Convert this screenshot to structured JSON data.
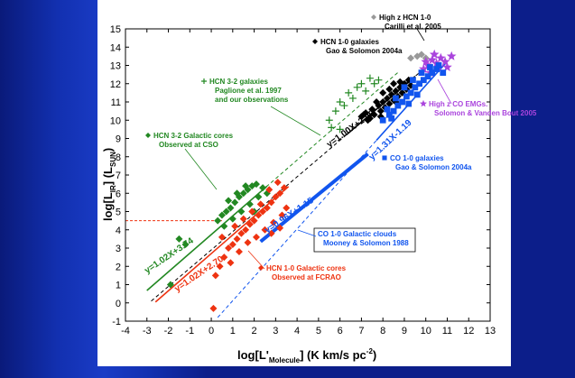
{
  "chart_data": {
    "type": "scatter",
    "xlabel": "log[L'Molecule] (K km/s pc-2)",
    "xlabel_main": "log[L'",
    "xlabel_sub": "Molecule",
    "xlabel_tail": "] (K km/s pc",
    "xlabel_sup": "-2",
    "xlabel_close": ")",
    "ylabel": "log[LIR] (LSUN)",
    "ylabel_main": "log[L",
    "ylabel_sub": "IR",
    "ylabel_mid": "] (L",
    "ylabel_sub2": "SUN",
    "ylabel_close": ")",
    "xlim": [
      -4,
      13
    ],
    "ylim": [
      -1,
      15
    ],
    "xticks": [
      -4,
      -3,
      -2,
      -1,
      0,
      1,
      2,
      3,
      4,
      5,
      6,
      7,
      8,
      9,
      10,
      11,
      12,
      13
    ],
    "yticks": [
      -1,
      0,
      1,
      2,
      3,
      4,
      5,
      6,
      7,
      8,
      9,
      10,
      11,
      12,
      13,
      14,
      15
    ],
    "series": [
      {
        "name": "HCN 1-0 galaxies",
        "color": "#000000",
        "marker": "diamond",
        "points": [
          [
            7.0,
            10.2
          ],
          [
            7.2,
            10.4
          ],
          [
            7.3,
            10.0
          ],
          [
            7.5,
            10.6
          ],
          [
            7.6,
            10.3
          ],
          [
            7.8,
            10.8
          ],
          [
            7.9,
            10.5
          ],
          [
            8.0,
            11.0
          ],
          [
            8.1,
            10.7
          ],
          [
            8.2,
            11.2
          ],
          [
            8.3,
            10.9
          ],
          [
            8.4,
            11.4
          ],
          [
            8.5,
            11.1
          ],
          [
            8.6,
            11.6
          ],
          [
            8.7,
            11.3
          ],
          [
            8.8,
            11.8
          ],
          [
            8.9,
            11.5
          ],
          [
            9.0,
            12.0
          ],
          [
            9.1,
            11.7
          ],
          [
            9.2,
            12.2
          ],
          [
            8.0,
            11.5
          ],
          [
            7.7,
            11.0
          ],
          [
            8.5,
            12.0
          ],
          [
            9.3,
            11.9
          ],
          [
            7.4,
            10.1
          ],
          [
            8.3,
            11.7
          ],
          [
            8.8,
            12.1
          ],
          [
            7.1,
            10.3
          ],
          [
            7.9,
            10.2
          ],
          [
            8.6,
            11.0
          ]
        ]
      },
      {
        "name": "High z HCN 1-0",
        "color": "#999999",
        "marker": "diamond",
        "points": [
          [
            9.3,
            13.4
          ],
          [
            9.6,
            13.5
          ],
          [
            9.8,
            13.6
          ],
          [
            10.0,
            13.4
          ]
        ]
      },
      {
        "name": "HCN 3-2 galaxies",
        "color": "#228822",
        "marker": "plus",
        "points": [
          [
            5.5,
            10.0
          ],
          [
            5.8,
            10.5
          ],
          [
            6.0,
            11.0
          ],
          [
            6.2,
            10.8
          ],
          [
            6.4,
            11.5
          ],
          [
            6.6,
            11.2
          ],
          [
            6.8,
            11.8
          ],
          [
            7.0,
            12.0
          ],
          [
            7.2,
            11.6
          ],
          [
            7.4,
            12.3
          ],
          [
            7.6,
            12.0
          ],
          [
            6.0,
            9.5
          ],
          [
            5.6,
            9.6
          ],
          [
            7.8,
            12.2
          ]
        ]
      },
      {
        "name": "High z CO EMGs",
        "color": "#aa44dd",
        "marker": "star",
        "points": [
          [
            9.9,
            12.8
          ],
          [
            10.1,
            13.0
          ],
          [
            10.3,
            13.3
          ],
          [
            10.5,
            13.1
          ],
          [
            10.7,
            13.4
          ],
          [
            10.9,
            13.2
          ],
          [
            10.2,
            12.6
          ],
          [
            10.6,
            12.9
          ],
          [
            11.2,
            13.5
          ],
          [
            10.0,
            13.2
          ],
          [
            10.4,
            13.6
          ],
          [
            11.0,
            12.9
          ]
        ]
      },
      {
        "name": "CO 1-0 galaxies",
        "color": "#1155ee",
        "marker": "square",
        "points": [
          [
            8.0,
            10.0
          ],
          [
            8.3,
            10.3
          ],
          [
            8.5,
            10.5
          ],
          [
            8.7,
            10.8
          ],
          [
            8.9,
            11.0
          ],
          [
            9.1,
            11.3
          ],
          [
            9.3,
            11.5
          ],
          [
            9.5,
            11.8
          ],
          [
            9.7,
            12.0
          ],
          [
            9.9,
            12.2
          ],
          [
            10.1,
            12.4
          ],
          [
            10.3,
            12.6
          ],
          [
            10.5,
            12.8
          ],
          [
            8.2,
            10.6
          ],
          [
            8.6,
            11.2
          ],
          [
            9.0,
            11.8
          ],
          [
            9.4,
            12.2
          ],
          [
            9.8,
            12.6
          ],
          [
            10.2,
            12.9
          ],
          [
            10.6,
            13.0
          ],
          [
            10.8,
            12.6
          ],
          [
            8.4,
            10.1
          ],
          [
            9.2,
            10.9
          ],
          [
            9.6,
            11.4
          ]
        ]
      },
      {
        "name": "HCN 3-2 Galactic cores",
        "color": "#228822",
        "marker": "diamond",
        "points": [
          [
            -1.5,
            3.5
          ],
          [
            -1.2,
            3.2
          ],
          [
            -1.9,
            1.0
          ],
          [
            0.3,
            4.5
          ],
          [
            0.5,
            4.8
          ],
          [
            0.7,
            5.0
          ],
          [
            0.9,
            5.2
          ],
          [
            1.1,
            5.5
          ],
          [
            1.3,
            5.8
          ],
          [
            1.5,
            6.0
          ],
          [
            1.7,
            6.2
          ],
          [
            1.9,
            6.4
          ],
          [
            2.1,
            6.5
          ],
          [
            0.6,
            4.2
          ],
          [
            1.0,
            4.6
          ],
          [
            1.4,
            5.0
          ],
          [
            1.8,
            5.4
          ],
          [
            2.2,
            5.8
          ],
          [
            2.6,
            6.0
          ],
          [
            0.8,
            5.6
          ],
          [
            1.2,
            6.0
          ],
          [
            1.6,
            6.4
          ],
          [
            2.0,
            5.0
          ],
          [
            2.4,
            6.3
          ]
        ]
      },
      {
        "name": "HCN 1-0 Galactic cores",
        "color": "#ee3311",
        "marker": "diamond",
        "points": [
          [
            0.1,
            -0.3
          ],
          [
            0.2,
            1.5
          ],
          [
            0.4,
            2.0
          ],
          [
            0.6,
            2.5
          ],
          [
            0.8,
            3.0
          ],
          [
            1.0,
            3.2
          ],
          [
            1.2,
            3.5
          ],
          [
            1.4,
            3.8
          ],
          [
            1.6,
            4.0
          ],
          [
            1.8,
            4.3
          ],
          [
            2.0,
            4.5
          ],
          [
            2.2,
            4.8
          ],
          [
            2.4,
            5.0
          ],
          [
            2.6,
            5.2
          ],
          [
            2.8,
            5.5
          ],
          [
            3.0,
            5.8
          ],
          [
            3.2,
            6.0
          ],
          [
            3.4,
            6.3
          ],
          [
            0.9,
            2.2
          ],
          [
            1.3,
            2.8
          ],
          [
            1.7,
            3.3
          ],
          [
            2.1,
            3.6
          ],
          [
            2.5,
            4.0
          ],
          [
            2.9,
            4.4
          ],
          [
            3.3,
            4.8
          ],
          [
            1.5,
            4.6
          ],
          [
            1.9,
            5.0
          ],
          [
            2.3,
            5.4
          ],
          [
            2.7,
            6.2
          ],
          [
            3.1,
            6.6
          ],
          [
            0.5,
            3.6
          ],
          [
            1.1,
            4.2
          ],
          [
            2.8,
            3.8
          ],
          [
            3.2,
            4.1
          ],
          [
            3.5,
            5.2
          ]
        ]
      }
    ],
    "fits": [
      {
        "label": "y=1.00X+2.90",
        "color": "#000000",
        "slope": 1.0,
        "intercept": 2.9,
        "from": -2.8,
        "to": 9.8,
        "style": "dashed",
        "solid_from": 6.3,
        "solid_to": 9.5,
        "label_x": 5.5,
        "label_y": 8.5,
        "label_angle": -36
      },
      {
        "label": "y=1.02X+3.74",
        "color": "#228822",
        "slope": 1.02,
        "intercept": 3.74,
        "from": -3.0,
        "to": 8.7,
        "style": "dashed",
        "solid_from": -3.0,
        "solid_to": 2.6,
        "label_x": -3.0,
        "label_y": 1.6,
        "label_angle": -34
      },
      {
        "label": "y=1.02X+2.70",
        "color": "#ee3311",
        "slope": 1.02,
        "intercept": 2.7,
        "from": -2.6,
        "to": 3.6,
        "style": "solid",
        "solid_from": -2.6,
        "solid_to": 3.6,
        "label_x": -1.6,
        "label_y": 0.6,
        "label_angle": -34
      },
      {
        "label": "y=1.31X-1.19",
        "color": "#1155ee",
        "slope": 1.31,
        "intercept": -1.19,
        "from": 0.3,
        "to": 11.0,
        "style": "dashed",
        "solid_from": 7.7,
        "solid_to": 11.0,
        "label_x": 7.5,
        "label_y": 7.8,
        "label_angle": -43
      },
      {
        "label": "y=0.96X+1.15",
        "color": "#1155ee",
        "slope": 0.96,
        "intercept": 1.15,
        "from": 2.3,
        "to": 7.3,
        "style": "solid",
        "solid_from": 2.3,
        "solid_to": 7.3,
        "label_x": 2.6,
        "label_y": 3.8,
        "label_angle": -34
      }
    ],
    "threshold": {
      "y": 4.5,
      "x_from": -4,
      "x_to": 0.5,
      "color": "#ee3311"
    }
  },
  "annotations": [
    {
      "lines": [
        "High z HCN 1-0",
        "Carilli et al. 2005"
      ],
      "color": "#000000",
      "marker": "diamond",
      "marker_color": "#999999"
    },
    {
      "lines": [
        "HCN 1-0 galaxies",
        "Gao & Solomon 2004a"
      ],
      "color": "#000000",
      "marker": "diamond",
      "marker_color": "#000000"
    },
    {
      "lines": [
        "HCN 3-2 galaxies",
        "Paglione et al. 1997",
        "and our observations"
      ],
      "color": "#228822",
      "marker": "plus",
      "marker_color": "#228822"
    },
    {
      "lines": [
        "High z CO EMGs.",
        "Solomon & Vanden Bout 2005"
      ],
      "color": "#aa44dd",
      "marker": "star",
      "marker_color": "#aa44dd"
    },
    {
      "lines": [
        "HCN 3-2 Galactic cores",
        "Observed at CSO"
      ],
      "color": "#228822",
      "marker": "diamond",
      "marker_color": "#228822"
    },
    {
      "lines": [
        "CO 1-0 galaxies",
        "Gao & Solomon 2004a"
      ],
      "color": "#1155ee",
      "marker": "square",
      "marker_color": "#1155ee"
    },
    {
      "lines": [
        "CO 1-0 Galactic clouds",
        "Mooney & Solomon 1988"
      ],
      "color": "#1155ee",
      "marker": "none",
      "marker_color": "#1155ee"
    },
    {
      "lines": [
        "HCN 1-0 Galactic cores",
        "Observed at FCRAO"
      ],
      "color": "#ee3311",
      "marker": "diamond",
      "marker_color": "#ee3311"
    }
  ]
}
